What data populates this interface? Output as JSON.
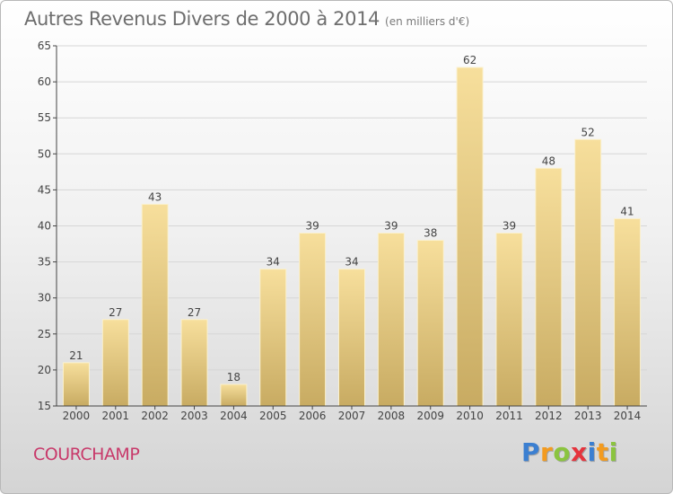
{
  "title": "Autres Revenus Divers de 2000 à 2014",
  "subtitle": "(en milliers d'€)",
  "commune": "COURCHAMP",
  "logo": {
    "letters": [
      "P",
      "r",
      "o",
      "x",
      "i",
      "t",
      "i"
    ],
    "colors": [
      "#3b7fd1",
      "#f39b1f",
      "#8bc43f",
      "#e5343d",
      "#3b7fd1",
      "#f39b1f",
      "#8bc43f"
    ]
  },
  "colors": {
    "bar_top": "#f7df9c",
    "bar_bottom": "#c8ab62",
    "bar_border": "#faf1cf",
    "grid": "#d6d6d6",
    "axis": "#444444",
    "commune": "#c8396a"
  },
  "chart_data": {
    "type": "bar",
    "title": "Autres Revenus Divers de 2000 à 2014",
    "subtitle": "(en milliers d'€)",
    "categories": [
      "2000",
      "2001",
      "2002",
      "2003",
      "2004",
      "2005",
      "2006",
      "2007",
      "2008",
      "2009",
      "2010",
      "2011",
      "2012",
      "2013",
      "2014"
    ],
    "values": [
      21,
      27,
      43,
      27,
      18,
      34,
      39,
      34,
      39,
      38,
      62,
      39,
      48,
      52,
      41
    ],
    "ylim": [
      15,
      65
    ],
    "yticks": [
      15,
      20,
      25,
      30,
      35,
      40,
      45,
      50,
      55,
      60,
      65
    ],
    "grid": true,
    "xlabel": "",
    "ylabel": ""
  }
}
